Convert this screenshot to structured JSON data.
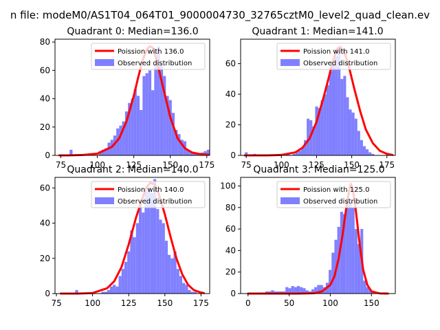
{
  "figure": {
    "suptitle": "n file: modeM0/AS1T04_064T01_9000004730_32765cztM0_level2_quad_clean.ev"
  },
  "colors": {
    "bar": "#8080ff",
    "fit": "#ff0000",
    "axis": "#000000",
    "background": "#ffffff"
  },
  "chart_data": [
    {
      "type": "bar",
      "title": "Quadrant 0: Median=136.0",
      "median": 136.0,
      "legend": [
        "Poission with 136.0",
        "Observed distribution"
      ],
      "legend_position": "top-right",
      "xlim": [
        71,
        177
      ],
      "ylim": [
        0,
        82
      ],
      "xticks": [
        75,
        100,
        125,
        150,
        175
      ],
      "yticks": [
        0,
        20,
        40,
        60,
        80
      ],
      "bin_start": 73,
      "bin_width": 2,
      "hist": [
        0,
        0,
        0,
        0,
        4,
        0,
        0,
        0,
        0,
        0,
        0,
        0,
        0,
        0,
        3,
        4,
        5,
        9,
        11,
        14,
        19,
        21,
        24,
        31,
        37,
        40,
        47,
        42,
        32,
        56,
        58,
        60,
        46,
        64,
        77,
        64,
        56,
        42,
        39,
        30,
        18,
        15,
        11,
        10,
        4,
        3,
        2,
        1,
        0,
        2,
        3,
        4
      ],
      "fit": {
        "x": [
          74,
          80,
          90,
          100,
          110,
          115,
          120,
          125,
          128,
          131,
          134,
          136,
          138,
          140,
          143,
          146,
          150,
          155,
          160,
          165,
          170,
          176
        ],
        "y": [
          0,
          0,
          0.3,
          1.2,
          6,
          12,
          24,
          42,
          55,
          67,
          75,
          77,
          76,
          70,
          57,
          44,
          27,
          12,
          5,
          2,
          1,
          0.5
        ]
      }
    },
    {
      "type": "bar",
      "title": "Quadrant 1: Median=141.0",
      "median": 141.0,
      "legend": [
        "Poission with 141.0",
        "Observed distribution"
      ],
      "legend_position": "top-right",
      "xlim": [
        71,
        181
      ],
      "ylim": [
        0,
        76
      ],
      "xticks": [
        75,
        100,
        125,
        150,
        175
      ],
      "yticks": [
        0,
        20,
        40,
        60
      ],
      "bin_start": 74,
      "bin_width": 2,
      "hist": [
        2,
        0,
        0,
        1,
        0,
        0,
        0,
        0,
        0,
        0,
        0,
        0,
        1,
        1,
        1,
        1,
        0,
        1,
        2,
        3,
        5,
        10,
        24,
        23,
        19,
        32,
        31,
        36,
        40,
        46,
        55,
        60,
        65,
        70,
        50,
        52,
        38,
        30,
        28,
        24,
        16,
        10,
        6,
        4,
        2,
        1,
        0,
        0,
        0,
        0,
        0,
        0,
        0
      ],
      "fit": {
        "x": [
          74,
          90,
          100,
          110,
          115,
          120,
          125,
          130,
          134,
          137,
          140,
          142,
          145,
          148,
          152,
          156,
          160,
          165,
          170,
          175,
          179
        ],
        "y": [
          0,
          0,
          0.3,
          2,
          5,
          11,
          22,
          38,
          52,
          63,
          70,
          71,
          67,
          58,
          43,
          29,
          17,
          8,
          3,
          1,
          0.3
        ]
      }
    },
    {
      "type": "bar",
      "title": "Quadrant 2: Median=140.0",
      "median": 140.0,
      "legend": [
        "Poission with 140.0",
        "Observed distribution"
      ],
      "legend_position": "top-right",
      "xlim": [
        74,
        181
      ],
      "ylim": [
        0,
        66
      ],
      "xticks": [
        75,
        100,
        125,
        150,
        175
      ],
      "yticks": [
        0,
        20,
        40,
        60
      ],
      "bin_start": 78,
      "bin_width": 2,
      "hist": [
        0,
        0,
        0,
        0,
        0,
        2,
        0,
        0,
        0,
        0,
        0,
        0,
        0,
        0,
        1,
        1,
        2,
        4,
        5,
        4,
        10,
        14,
        18,
        24,
        36,
        32,
        40,
        50,
        46,
        58,
        60,
        57,
        65,
        48,
        42,
        40,
        30,
        22,
        20,
        24,
        14,
        10,
        6,
        5,
        2,
        1,
        1,
        0,
        0,
        0
      ],
      "fit": {
        "x": [
          78,
          90,
          100,
          110,
          115,
          120,
          125,
          130,
          134,
          137,
          140,
          143,
          146,
          150,
          154,
          158,
          162,
          166,
          170,
          174,
          177
        ],
        "y": [
          0,
          0,
          0.3,
          3,
          7,
          15,
          28,
          43,
          53,
          60,
          63,
          62,
          56,
          45,
          32,
          20,
          11,
          5,
          2,
          0.8,
          0.3
        ]
      }
    },
    {
      "type": "bar",
      "title": "Quadrant 3: Median=125.0",
      "median": 125.0,
      "legend": [
        "Poission with 125.0",
        "Observed distribution"
      ],
      "legend_position": "top-right",
      "xlim": [
        -9,
        179
      ],
      "ylim": [
        0,
        108
      ],
      "xticks": [
        0,
        50,
        100,
        150
      ],
      "yticks": [
        0,
        20,
        40,
        60,
        80,
        100
      ],
      "bin_start": 0,
      "bin_width": 3.5,
      "hist": [
        0,
        0,
        0,
        0,
        1,
        1,
        2,
        2,
        3,
        2,
        2,
        2,
        2,
        6,
        5,
        7,
        6,
        7,
        6,
        5,
        3,
        2,
        4,
        6,
        8,
        8,
        6,
        10,
        22,
        38,
        50,
        62,
        76,
        74,
        84,
        86,
        80,
        60,
        46,
        60,
        12,
        6,
        4,
        2,
        1,
        0,
        0,
        0
      ],
      "fit": {
        "x": [
          0,
          60,
          80,
          90,
          100,
          105,
          110,
          115,
          118,
          121,
          124,
          125,
          127,
          130,
          133,
          136,
          140,
          145,
          150,
          160,
          170
        ],
        "y": [
          0,
          0,
          0.3,
          2,
          8,
          16,
          32,
          55,
          72,
          88,
          100,
          102,
          98,
          84,
          64,
          44,
          22,
          8,
          2,
          0.2,
          0
        ]
      }
    }
  ]
}
